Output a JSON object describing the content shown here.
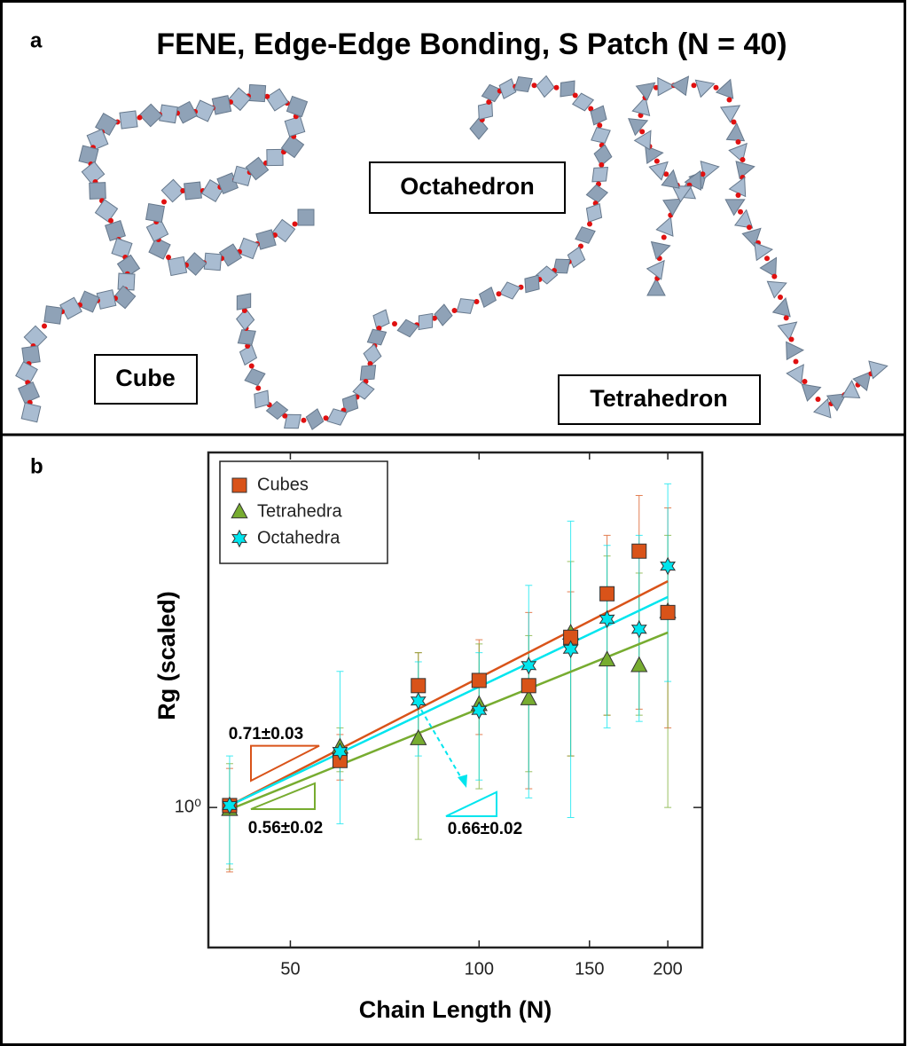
{
  "panel_a": {
    "label": "a",
    "title": "FENE, Edge-Edge Bonding, S Patch (N = 40)",
    "shapes": [
      "Cube",
      "Octahedron",
      "Tetrahedron"
    ]
  },
  "chart_data": {
    "type": "scatter",
    "panel_label": "b",
    "xlabel": "Chain Length (N)",
    "ylabel": "Rg (scaled)",
    "xscale": "log",
    "yscale": "log",
    "xlim": [
      37,
      227
    ],
    "ylim": [
      0.49,
      6.1
    ],
    "xticks": [
      50,
      100,
      150,
      200
    ],
    "yticks": [
      {
        "value": 1,
        "label": "10⁰"
      }
    ],
    "legend": "upper left",
    "x": [
      40,
      60,
      80,
      100,
      120,
      140,
      160,
      180,
      200
    ],
    "series": [
      {
        "name": "Cubes",
        "color": "#d95319",
        "marker": "square",
        "values": [
          1.01,
          1.27,
          1.86,
          1.91,
          1.86,
          2.38,
          2.97,
          3.69,
          2.7
        ],
        "err_low": [
          0.72,
          1.15,
          1.45,
          1.45,
          1.1,
          1.3,
          1.6,
          1.65,
          1.5
        ],
        "err_high": [
          1.22,
          1.45,
          2.2,
          2.35,
          2.7,
          3.0,
          4.0,
          4.9,
          4.6
        ],
        "fit_slope": 0.71,
        "fit_label": "0.71±0.03"
      },
      {
        "name": "Tetrahedra",
        "color": "#77ac30",
        "marker": "triangle",
        "values": [
          0.99,
          1.36,
          1.42,
          1.69,
          1.74,
          2.43,
          2.12,
          2.06,
          2.71
        ],
        "err_low": [
          0.73,
          1.2,
          0.85,
          1.1,
          1.2,
          1.3,
          1.6,
          1.6,
          1.0
        ],
        "err_high": [
          1.25,
          1.5,
          2.2,
          2.3,
          2.4,
          3.5,
          3.6,
          3.3,
          4.0
        ],
        "fit_slope": 0.56,
        "fit_label": "0.56±0.02"
      },
      {
        "name": "Octahedra",
        "color": "#00e5ee",
        "marker": "hexagram",
        "values": [
          1.01,
          1.33,
          1.72,
          1.64,
          2.06,
          2.24,
          2.61,
          2.48,
          3.42
        ],
        "err_low": [
          0.75,
          0.92,
          1.3,
          1.15,
          1.05,
          0.95,
          1.5,
          1.55,
          1.9
        ],
        "err_high": [
          1.3,
          2.0,
          2.1,
          2.2,
          3.1,
          4.3,
          3.8,
          4.0,
          5.2
        ],
        "fit_slope": 0.66,
        "fit_label": "0.66±0.02"
      }
    ]
  }
}
